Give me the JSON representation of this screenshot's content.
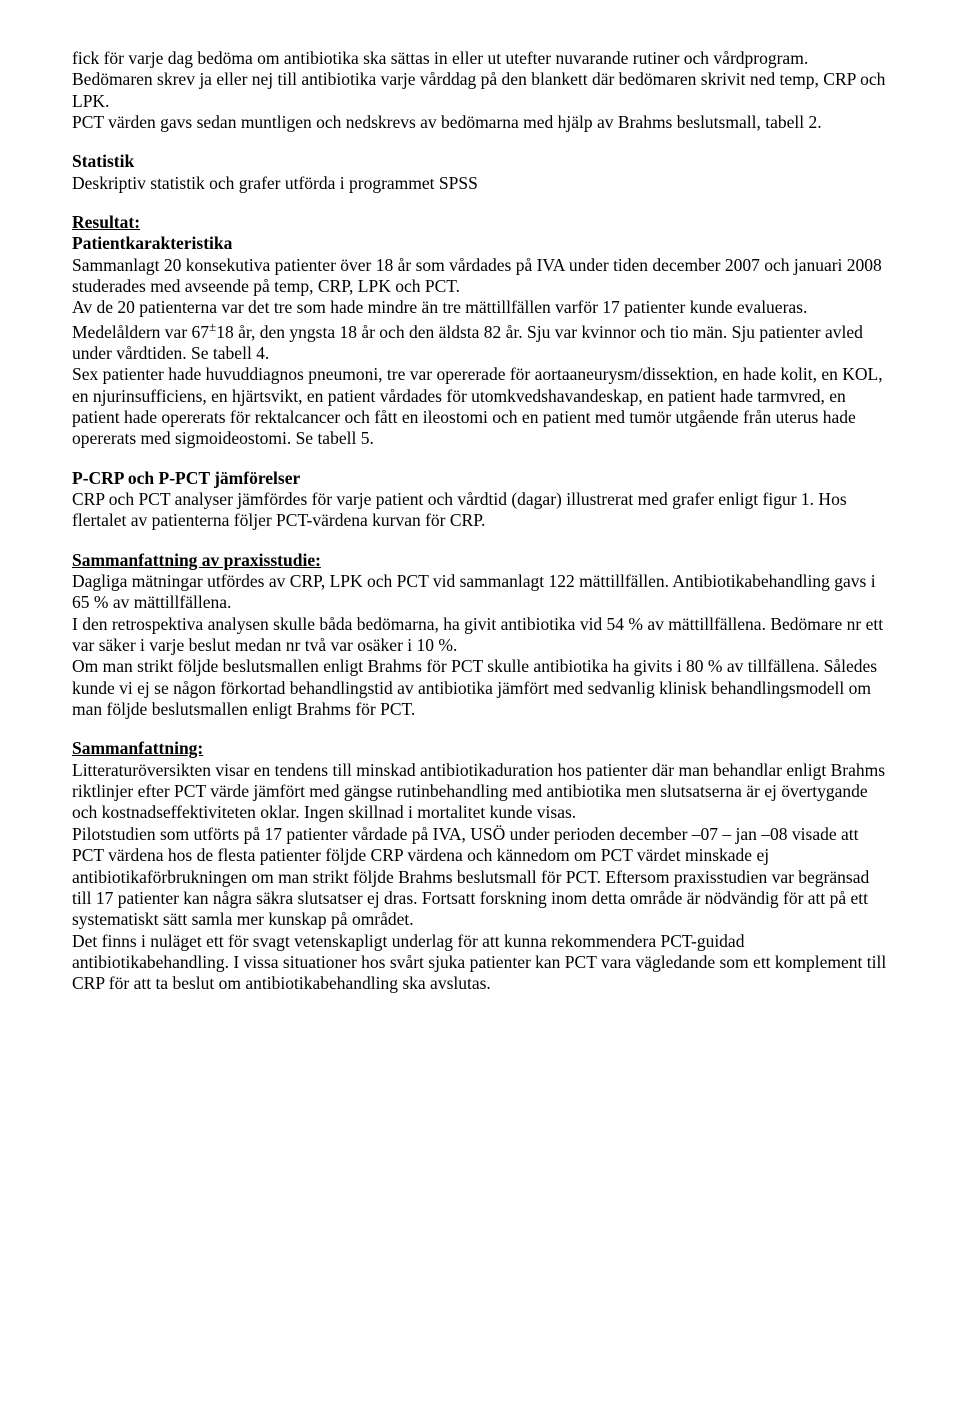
{
  "doc": {
    "p1": "fick för varje dag bedöma om antibiotika ska sättas in eller ut utefter nuvarande rutiner och vårdprogram. Bedömaren skrev ja eller nej till antibiotika varje vårddag på den blankett där bedömaren skrivit ned temp, CRP och LPK.",
    "p1b": "PCT värden gavs sedan muntligen och nedskrevs av bedömarna med hjälp av Brahms beslutsmall, tabell 2.",
    "stat_h": "Statistik",
    "stat_p": "Deskriptiv statistik och grafer utförda i programmet SPSS",
    "res_h": "Resultat:",
    "pat_h": "Patientkarakteristika",
    "pat_p1": "Sammanlagt 20 konsekutiva patienter över 18 år som vårdades på IVA under tiden december 2007 och januari 2008 studerades med avseende på temp, CRP, LPK och PCT.",
    "pat_p2a": "Av de 20 patienterna var det tre som hade mindre än tre mättillfällen varför 17 patienter kunde evalueras. Medelåldern var 67",
    "pat_p2sup": "±",
    "pat_p2b": "18 år, den yngsta 18 år och den äldsta 82 år. Sju var kvinnor och tio män. Sju patienter avled under vårdtiden. Se tabell 4.",
    "pat_p3": "Sex patienter hade huvuddiagnos pneumoni, tre var opererade för aortaaneurysm/dissektion, en hade kolit, en KOL, en njurinsufficiens, en hjärtsvikt, en patient vårdades för utomkvedshavandeskap, en patient hade tarmvred, en patient hade opererats för rektalcancer och fått en ileostomi och en patient med tumör utgående från uterus hade opererats med sigmoideostomi. Se tabell 5.",
    "crp_h": "P-CRP och P-PCT jämförelser",
    "crp_p": "CRP och PCT analyser jämfördes för varje patient och vårdtid (dagar) illustrerat med grafer enligt figur 1. Hos flertalet av patienterna följer PCT-värdena kurvan för CRP.",
    "prax_h": "Sammanfattning av praxisstudie:",
    "prax_p1": "Dagliga mätningar utfördes av CRP, LPK och PCT vid sammanlagt 122 mättillfällen. Antibiotikabehandling gavs i 65 % av mättillfällena.",
    "prax_p2": "I den retrospektiva analysen skulle båda bedömarna, ha givit antibiotika vid 54 % av mättillfällena. Bedömare nr ett var säker i varje beslut medan nr två var osäker i 10 %.",
    "prax_p3": "Om man strikt följde beslutsmallen enligt Brahms för PCT  skulle antibiotika ha givits i 80 % av tillfällena. Således kunde vi ej se någon förkortad behandlingstid av antibiotika jämfört med sedvanlig klinisk behandlingsmodell om man följde beslutsmallen enligt Brahms för PCT.",
    "sum_h": "Sammanfattning:",
    "sum_p1": "Litteraturöversikten visar en tendens till minskad antibiotikaduration hos patienter där man behandlar enligt Brahms riktlinjer efter PCT värde jämfört med gängse rutinbehandling med antibiotika men slutsatserna är ej övertygande och kostnadseffektiviteten oklar. Ingen skillnad i mortalitet kunde visas.",
    "sum_p2": "Pilotstudien som utförts på 17 patienter vårdade på IVA, USÖ under perioden december –07 – jan –08 visade att PCT värdena hos de flesta patienter följde CRP värdena och kännedom om PCT värdet minskade ej antibiotikaförbrukningen om man strikt följde Brahms beslutsmall för PCT. Eftersom praxisstudien var begränsad till 17 patienter kan några säkra slutsatser ej dras. Fortsatt forskning inom detta område är nödvändig för att på ett systematiskt sätt samla mer kunskap på området.",
    "sum_p3": "Det finns i nuläget ett för svagt vetenskapligt underlag för att kunna rekommendera PCT-guidad antibiotikabehandling. I vissa situationer hos svårt sjuka patienter kan PCT vara vägledande som ett komplement till CRP för att ta beslut om antibiotikabehandling ska avslutas."
  }
}
